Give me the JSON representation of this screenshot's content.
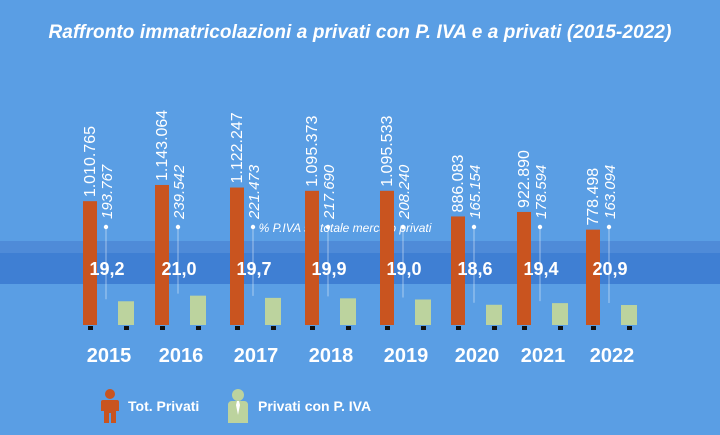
{
  "title": "Raffronto immatricolazioni a privati con P. IVA e a privati (2015-2022)",
  "colors": {
    "background": "#5a9ee4",
    "band": "#3f7fd3",
    "band_light": "#5d95dd",
    "tot_privati": "#c9541f",
    "privati_piva": "#bcd39e",
    "text": "#ffffff"
  },
  "chart_data": {
    "type": "bar",
    "title": "Raffronto immatricolazioni a privati con P. IVA e a privati (2015-2022)",
    "categories": [
      "2015",
      "2016",
      "2017",
      "2018",
      "2019",
      "2020",
      "2021",
      "2022"
    ],
    "series": [
      {
        "name": "Tot. Privati",
        "values": [
          1010765,
          1143064,
          1122247,
          1095373,
          1095533,
          886083,
          922890,
          778498
        ],
        "labels": [
          "1.010.765",
          "1.143.064",
          "1.122.247",
          "1.095.373",
          "1.095.533",
          "886.083",
          "922.890",
          "778.498"
        ]
      },
      {
        "name": "Privati con P. IVA",
        "values": [
          193767,
          239542,
          221473,
          217690,
          208240,
          165154,
          178594,
          163094
        ],
        "labels": [
          "193.767",
          "239.542",
          "221.473",
          "217.690",
          "208.240",
          "165.154",
          "178.594",
          "163.094"
        ]
      }
    ],
    "share_label": "% P.IVA su totale mercato privati",
    "share_values": [
      19.2,
      21.0,
      19.7,
      19.9,
      19.0,
      18.6,
      19.4,
      20.9
    ],
    "share_labels": [
      "19,2",
      "21,0",
      "19,7",
      "19,9",
      "19,0",
      "18,6",
      "19,4",
      "20,9"
    ],
    "legend": [
      "Tot. Privati",
      "Privati con P. IVA"
    ]
  }
}
